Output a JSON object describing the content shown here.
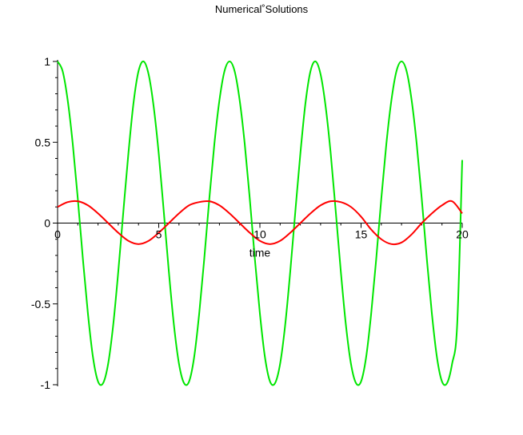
{
  "chart_data": {
    "type": "line",
    "title": "Numerical˚Solutions",
    "xlabel": "time",
    "ylabel": "",
    "xlim": [
      0,
      20
    ],
    "ylim": [
      -1,
      1
    ],
    "grid": false,
    "legend": "none",
    "x_ticks": [
      {
        "value": 0,
        "label": "0"
      },
      {
        "value": 5,
        "label": "5"
      },
      {
        "value": 10,
        "label": "10"
      },
      {
        "value": 15,
        "label": "15"
      },
      {
        "value": 20,
        "label": "20"
      }
    ],
    "y_ticks": [
      {
        "value": 1,
        "label": "1"
      },
      {
        "value": 0.5,
        "label": "0.5"
      },
      {
        "value": 0,
        "label": "0"
      },
      {
        "value": -0.5,
        "label": "-0.5"
      },
      {
        "value": -1,
        "label": "-1"
      }
    ],
    "series": [
      {
        "color": "#00e600",
        "x": [
          0,
          0.25,
          0.5,
          0.75,
          1,
          1.25,
          1.5,
          1.75,
          2,
          2.25,
          2.5,
          2.75,
          3,
          3.25,
          3.5,
          3.75,
          4,
          4.25,
          4.5,
          4.75,
          5,
          5.25,
          5.5,
          5.75,
          6,
          6.25,
          6.5,
          6.75,
          7,
          7.25,
          7.5,
          7.75,
          8,
          8.25,
          8.5,
          8.75,
          9,
          9.25,
          9.5,
          9.75,
          10,
          10.25,
          10.5,
          10.75,
          11,
          11.25,
          11.5,
          11.75,
          12,
          12.25,
          12.5,
          12.75,
          13,
          13.25,
          13.5,
          13.75,
          14,
          14.25,
          14.5,
          14.75,
          15,
          15.25,
          15.5,
          15.75,
          16,
          16.25,
          16.5,
          16.75,
          17,
          17.25,
          17.5,
          17.75,
          18,
          18.25,
          18.5,
          18.75,
          19,
          19.25,
          19.5,
          19.75,
          20
        ],
        "y": [
          1,
          0.94,
          0.76,
          0.49,
          0.15,
          -0.22,
          -0.56,
          -0.83,
          -0.98,
          -0.99,
          -0.87,
          -0.63,
          -0.3,
          0.07,
          0.43,
          0.74,
          0.94,
          1,
          0.92,
          0.72,
          0.43,
          0.07,
          -0.3,
          -0.63,
          -0.87,
          -0.99,
          -0.98,
          -0.83,
          -0.56,
          -0.22,
          0.15,
          0.49,
          0.76,
          0.94,
          1,
          0.94,
          0.76,
          0.49,
          0.15,
          -0.22,
          -0.56,
          -0.83,
          -0.98,
          -0.99,
          -0.87,
          -0.63,
          -0.3,
          0.07,
          0.43,
          0.74,
          0.94,
          1,
          0.92,
          0.72,
          0.43,
          0.07,
          -0.3,
          -0.63,
          -0.87,
          -0.99,
          -0.98,
          -0.83,
          -0.56,
          -0.22,
          0.15,
          0.49,
          0.76,
          0.94,
          1,
          0.94,
          0.76,
          0.49,
          0.15,
          -0.22,
          -0.56,
          -0.83,
          -0.98,
          -0.99,
          -0.87,
          -0.63,
          0.39
        ]
      },
      {
        "color": "#ff0000",
        "x": [
          0,
          0.5,
          1,
          1.5,
          2,
          2.5,
          3,
          3.5,
          4,
          4.5,
          5,
          5.5,
          6,
          6.5,
          7,
          7.5,
          8,
          8.5,
          9,
          9.5,
          10,
          10.5,
          11,
          11.5,
          12,
          12.5,
          13,
          13.5,
          14,
          14.5,
          15,
          15.5,
          16,
          16.5,
          17,
          17.5,
          18,
          18.5,
          19,
          19.5,
          20
        ],
        "y": [
          0.1,
          0.13,
          0.135,
          0.11,
          0.06,
          0.0,
          -0.06,
          -0.11,
          -0.13,
          -0.11,
          -0.06,
          0.0,
          0.06,
          0.11,
          0.13,
          0.135,
          0.11,
          0.06,
          0.0,
          -0.06,
          -0.11,
          -0.13,
          -0.11,
          -0.06,
          0.0,
          0.06,
          0.11,
          0.135,
          0.13,
          0.1,
          0.04,
          -0.04,
          -0.1,
          -0.13,
          -0.12,
          -0.07,
          0.0,
          0.06,
          0.11,
          0.135,
          0.06
        ]
      }
    ]
  }
}
